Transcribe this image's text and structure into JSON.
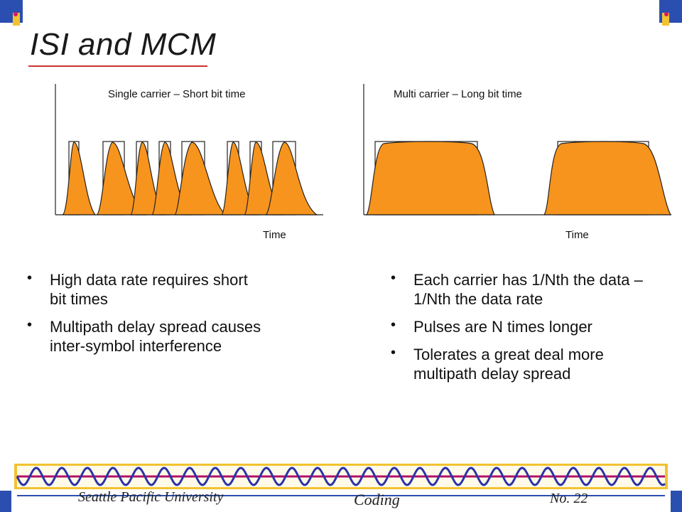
{
  "slide": {
    "title": "ISI and MCM"
  },
  "diagram": {
    "left_panel_label": "Single carrier – Short bit time",
    "right_panel_label": "Multi carrier – Long bit time",
    "left_axis_label": "Time",
    "right_axis_label": "Time"
  },
  "left_bullets": [
    "High data rate requires short bit times",
    "Multipath delay spread causes inter-symbol interference"
  ],
  "right_bullets": [
    "Each carrier has 1/Nth the data – 1/Nth the data rate",
    "Pulses are N times longer",
    "Tolerates a great deal more multipath delay spread"
  ],
  "footer": {
    "logo_text": "Seattle Pacific University",
    "subject": "Coding",
    "page": "No. 22"
  },
  "colors": {
    "pulse_fill": "#F7941D",
    "wave_blue": "#2a32a8",
    "wave_red": "#b0106a",
    "band_yellow": "#f2c230",
    "corner_blue": "#2b4fb0"
  }
}
